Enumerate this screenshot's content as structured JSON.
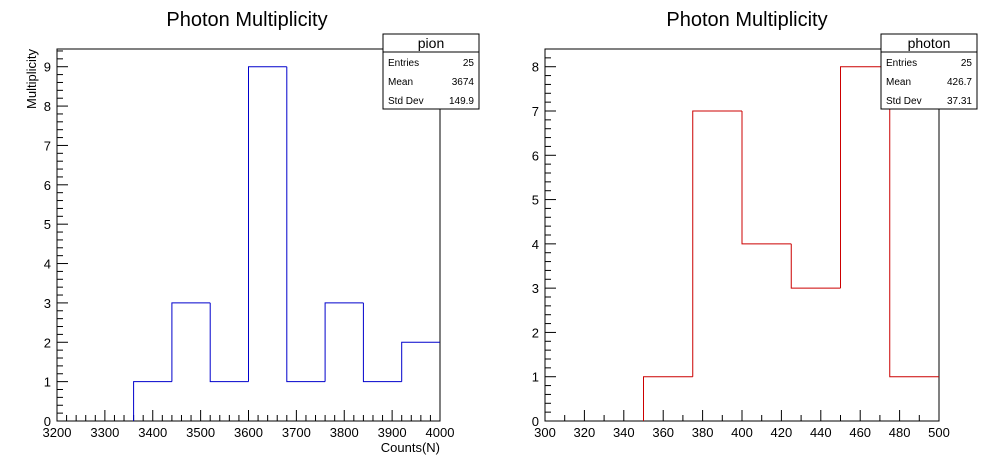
{
  "chart_data": [
    {
      "type": "bar",
      "title": "Photon Multiplicity",
      "xlabel": "Counts(N)",
      "ylabel": "Multiplicity",
      "xlim": [
        3200,
        4000
      ],
      "ylim": [
        0,
        9.45
      ],
      "x_ticks": [
        3200,
        3300,
        3400,
        3500,
        3600,
        3700,
        3800,
        3900,
        4000
      ],
      "y_ticks": [
        0,
        1,
        2,
        3,
        4,
        5,
        6,
        7,
        8,
        9
      ],
      "bin_edges": [
        3360,
        3440,
        3520,
        3600,
        3680,
        3760,
        3840,
        3920,
        4000
      ],
      "values": [
        1,
        3,
        1,
        9,
        1,
        3,
        1,
        2
      ],
      "color": "#0000cc",
      "stats": {
        "name": "pion",
        "rows": [
          {
            "label": "Entries",
            "value": "25"
          },
          {
            "label": "Mean",
            "value": "3674"
          },
          {
            "label": "Std Dev",
            "value": "149.9"
          }
        ]
      }
    },
    {
      "type": "bar",
      "title": "Photon Multiplicity",
      "xlabel": "",
      "ylabel": "",
      "xlim": [
        300,
        500
      ],
      "ylim": [
        0,
        8.4
      ],
      "x_ticks": [
        300,
        320,
        340,
        360,
        380,
        400,
        420,
        440,
        460,
        480,
        500
      ],
      "y_ticks": [
        0,
        1,
        2,
        3,
        4,
        5,
        6,
        7,
        8
      ],
      "bin_edges": [
        350,
        375,
        400,
        425,
        450,
        475,
        500
      ],
      "values": [
        1,
        7,
        4,
        3,
        8,
        1
      ],
      "color": "#cc0000",
      "stats": {
        "name": "photon",
        "rows": [
          {
            "label": "Entries",
            "value": "25"
          },
          {
            "label": "Mean",
            "value": "426.7"
          },
          {
            "label": "Std Dev",
            "value": "37.31"
          }
        ]
      }
    }
  ]
}
